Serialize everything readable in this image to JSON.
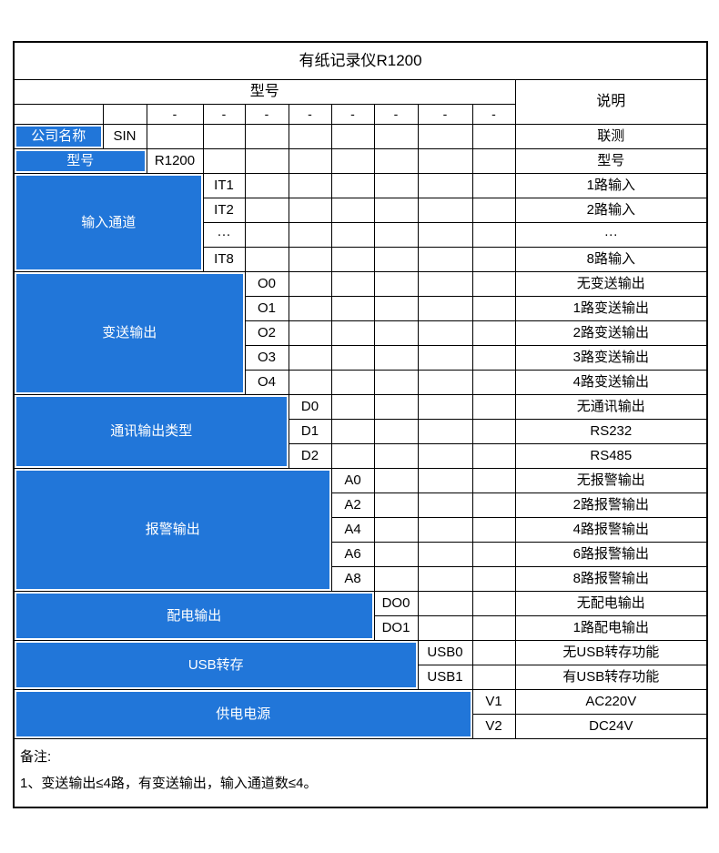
{
  "colors": {
    "accent_blue": "#2176d9",
    "grid": "#000000",
    "text": "#000000",
    "text_on_blue": "#ffffff"
  },
  "table": {
    "title": "有纸记录仪R1200",
    "header": {
      "model_label": "型号",
      "desc_label": "说明",
      "dash": "-",
      "dash_lead_empty": 2
    },
    "sections": [
      {
        "name": "company-name",
        "label": "公司名称",
        "colspan": 1,
        "rows": [
          {
            "code": "SIN",
            "desc": "联测"
          }
        ]
      },
      {
        "name": "model",
        "label": "型号",
        "colspan": 2,
        "rows": [
          {
            "code": "R1200",
            "desc": "型号"
          }
        ]
      },
      {
        "name": "input-channels",
        "label": "输入通道",
        "colspan": 3,
        "rows": [
          {
            "code": "IT1",
            "desc": "1路输入"
          },
          {
            "code": "IT2",
            "desc": "2路输入"
          },
          {
            "code": "···",
            "desc": "···"
          },
          {
            "code": "IT8",
            "desc": "8路输入"
          }
        ]
      },
      {
        "name": "transmit-output",
        "label": "变送输出",
        "colspan": 4,
        "rows": [
          {
            "code": "O0",
            "desc": "无变送输出"
          },
          {
            "code": "O1",
            "desc": "1路变送输出"
          },
          {
            "code": "O2",
            "desc": "2路变送输出"
          },
          {
            "code": "O3",
            "desc": "3路变送输出"
          },
          {
            "code": "O4",
            "desc": "4路变送输出"
          }
        ]
      },
      {
        "name": "comm-output-type",
        "label": "通讯输出类型",
        "colspan": 5,
        "rows": [
          {
            "code": "D0",
            "desc": "无通讯输出"
          },
          {
            "code": "D1",
            "desc": "RS232"
          },
          {
            "code": "D2",
            "desc": "RS485"
          }
        ]
      },
      {
        "name": "alarm-output",
        "label": "报警输出",
        "colspan": 6,
        "rows": [
          {
            "code": "A0",
            "desc": "无报警输出"
          },
          {
            "code": "A2",
            "desc": "2路报警输出"
          },
          {
            "code": "A4",
            "desc": "4路报警输出"
          },
          {
            "code": "A6",
            "desc": "6路报警输出"
          },
          {
            "code": "A8",
            "desc": "8路报警输出"
          }
        ]
      },
      {
        "name": "power-distribution-output",
        "label": "配电输出",
        "colspan": 7,
        "rows": [
          {
            "code": "DO0",
            "desc": "无配电输出"
          },
          {
            "code": "DO1",
            "desc": "1路配电输出"
          }
        ]
      },
      {
        "name": "usb-transfer",
        "label": "USB转存",
        "colspan": 8,
        "rows": [
          {
            "code": "USB0",
            "desc": "无USB转存功能"
          },
          {
            "code": "USB1",
            "desc": "有USB转存功能"
          }
        ]
      },
      {
        "name": "power-supply",
        "label": "供电电源",
        "colspan": 9,
        "rows": [
          {
            "code": "V1",
            "desc": "AC220V"
          },
          {
            "code": "V2",
            "desc": "DC24V"
          }
        ]
      }
    ],
    "notes": {
      "label": "备注:",
      "line1": "1、变送输出≤4路，有变送输出，输入通道数≤4。"
    }
  }
}
